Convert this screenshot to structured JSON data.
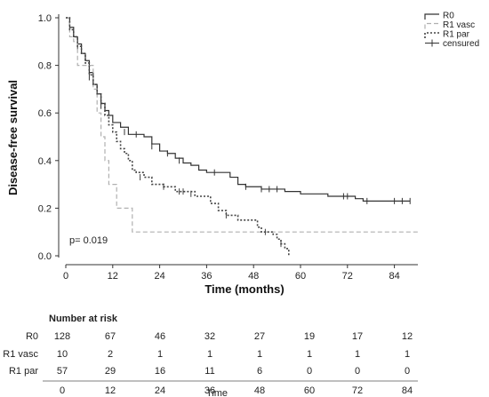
{
  "chart_data": {
    "type": "line",
    "xlabel": "Time (months)",
    "ylabel": "Disease-free survival",
    "xlim": [
      0,
      90
    ],
    "ylim": [
      0,
      1.0
    ],
    "x_ticks": [
      0,
      12,
      24,
      36,
      48,
      60,
      72,
      84
    ],
    "y_ticks": [
      0.0,
      0.2,
      0.4,
      0.6,
      0.8,
      1.0
    ],
    "y_tick_labels": [
      "0.0",
      "0.2",
      "0.4",
      "0.6",
      "0.8",
      "1.0"
    ],
    "annotation": "p= 0.019",
    "legend_position": "top-right",
    "legend": [
      "R0",
      "R1 vasc",
      "R1 par",
      "censured"
    ],
    "series": [
      {
        "name": "R0",
        "color": "#333333",
        "dash": "solid",
        "points": [
          [
            0,
            1.0
          ],
          [
            1,
            0.96
          ],
          [
            2,
            0.92
          ],
          [
            3,
            0.89
          ],
          [
            4,
            0.85
          ],
          [
            5,
            0.82
          ],
          [
            6,
            0.77
          ],
          [
            7,
            0.72
          ],
          [
            8,
            0.68
          ],
          [
            9,
            0.64
          ],
          [
            10,
            0.61
          ],
          [
            11,
            0.59
          ],
          [
            12,
            0.56
          ],
          [
            14,
            0.54
          ],
          [
            16,
            0.51
          ],
          [
            18,
            0.51
          ],
          [
            20,
            0.5
          ],
          [
            22,
            0.47
          ],
          [
            24,
            0.44
          ],
          [
            26,
            0.43
          ],
          [
            28,
            0.41
          ],
          [
            30,
            0.39
          ],
          [
            32,
            0.38
          ],
          [
            34,
            0.36
          ],
          [
            36,
            0.35
          ],
          [
            40,
            0.35
          ],
          [
            42,
            0.33
          ],
          [
            44,
            0.3
          ],
          [
            46,
            0.29
          ],
          [
            50,
            0.28
          ],
          [
            56,
            0.27
          ],
          [
            60,
            0.26
          ],
          [
            64,
            0.26
          ],
          [
            67,
            0.25
          ],
          [
            72,
            0.25
          ],
          [
            74,
            0.24
          ],
          [
            76,
            0.23
          ],
          [
            88,
            0.23
          ]
        ],
        "censored": [
          [
            3,
            0.88
          ],
          [
            6,
            0.75
          ],
          [
            9,
            0.63
          ],
          [
            15,
            0.52
          ],
          [
            18,
            0.51
          ],
          [
            22,
            0.46
          ],
          [
            26,
            0.43
          ],
          [
            29,
            0.4
          ],
          [
            38,
            0.35
          ],
          [
            46,
            0.29
          ],
          [
            50,
            0.28
          ],
          [
            52,
            0.28
          ],
          [
            54,
            0.28
          ],
          [
            71,
            0.25
          ],
          [
            72,
            0.25
          ],
          [
            77,
            0.23
          ],
          [
            84,
            0.23
          ],
          [
            86,
            0.23
          ],
          [
            88,
            0.23
          ]
        ]
      },
      {
        "name": "R1 vasc",
        "color": "#b0b0b0",
        "dash": "dashed",
        "points": [
          [
            0,
            1.0
          ],
          [
            1,
            0.92
          ],
          [
            2,
            0.9
          ],
          [
            3,
            0.8
          ],
          [
            5,
            0.8
          ],
          [
            7,
            0.7
          ],
          [
            8,
            0.6
          ],
          [
            9,
            0.5
          ],
          [
            10,
            0.4
          ],
          [
            11,
            0.3
          ],
          [
            13,
            0.2
          ],
          [
            16,
            0.2
          ],
          [
            17,
            0.1
          ],
          [
            90,
            0.1
          ]
        ],
        "censored": []
      },
      {
        "name": "R1 par",
        "color": "#444444",
        "dash": "dotted",
        "points": [
          [
            0,
            1.0
          ],
          [
            1,
            0.95
          ],
          [
            2,
            0.92
          ],
          [
            3,
            0.88
          ],
          [
            4,
            0.85
          ],
          [
            5,
            0.81
          ],
          [
            6,
            0.76
          ],
          [
            7,
            0.72
          ],
          [
            8,
            0.68
          ],
          [
            9,
            0.64
          ],
          [
            10,
            0.59
          ],
          [
            11,
            0.55
          ],
          [
            12,
            0.52
          ],
          [
            13,
            0.48
          ],
          [
            14,
            0.45
          ],
          [
            15,
            0.43
          ],
          [
            16,
            0.4
          ],
          [
            17,
            0.36
          ],
          [
            18,
            0.35
          ],
          [
            20,
            0.33
          ],
          [
            22,
            0.3
          ],
          [
            25,
            0.29
          ],
          [
            28,
            0.27
          ],
          [
            30,
            0.27
          ],
          [
            33,
            0.25
          ],
          [
            35,
            0.25
          ],
          [
            37,
            0.22
          ],
          [
            39,
            0.19
          ],
          [
            41,
            0.17
          ],
          [
            44,
            0.15
          ],
          [
            47,
            0.15
          ],
          [
            49,
            0.12
          ],
          [
            50,
            0.1
          ],
          [
            53,
            0.09
          ],
          [
            54,
            0.07
          ],
          [
            55,
            0.05
          ],
          [
            56,
            0.03
          ],
          [
            57,
            0.0
          ]
        ],
        "censored": [
          [
            19,
            0.33
          ],
          [
            25,
            0.29
          ],
          [
            29,
            0.27
          ],
          [
            30,
            0.27
          ],
          [
            32,
            0.26
          ],
          [
            41,
            0.17
          ],
          [
            51,
            0.1
          ],
          [
            55,
            0.05
          ]
        ]
      }
    ]
  },
  "risk_table": {
    "title": "Number at risk",
    "time_points": [
      "0",
      "12",
      "24",
      "36",
      "48",
      "60",
      "72",
      "84"
    ],
    "time_label": "Time",
    "rows": [
      {
        "label": "R0",
        "values": [
          "128",
          "67",
          "46",
          "32",
          "27",
          "19",
          "17",
          "12"
        ]
      },
      {
        "label": "R1 vasc",
        "values": [
          "10",
          "2",
          "1",
          "1",
          "1",
          "1",
          "1",
          "1"
        ]
      },
      {
        "label": "R1 par",
        "values": [
          "57",
          "29",
          "16",
          "11",
          "6",
          "0",
          "0",
          "0"
        ]
      }
    ]
  }
}
